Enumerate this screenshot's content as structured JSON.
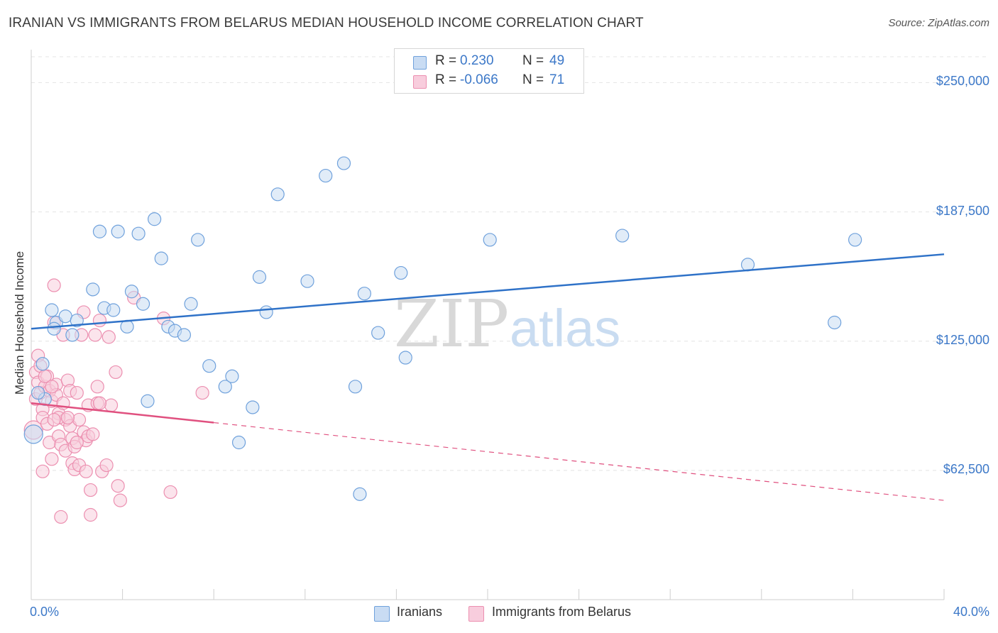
{
  "header": {
    "title": "IRANIAN VS IMMIGRANTS FROM BELARUS MEDIAN HOUSEHOLD INCOME CORRELATION CHART",
    "source": "Source: ZipAtlas.com"
  },
  "watermark": {
    "zip": "ZIP",
    "atlas": "atlas"
  },
  "colors": {
    "blue": "#6fa1dc",
    "blue_fill": "#c9dcf3",
    "blue_line": "#2f72c8",
    "pink": "#ec8fb0",
    "pink_fill": "#f8cddd",
    "pink_line": "#e0507f",
    "tick_label": "#3c78c8"
  },
  "legend": {
    "rows": [
      {
        "r_label": "R =",
        "r_value": "0.230",
        "n_label": "N =",
        "n_value": "49"
      },
      {
        "r_label": "R =",
        "r_value": "-0.066",
        "n_label": "N =",
        "n_value": "71"
      }
    ]
  },
  "bottom_legend": {
    "iranians": "Iranians",
    "belarus": "Immigrants from Belarus"
  },
  "chart_data": {
    "type": "scatter",
    "title": "IRANIAN VS IMMIGRANTS FROM BELARUS MEDIAN HOUSEHOLD INCOME CORRELATION CHART",
    "xlabel": "",
    "ylabel": "Median Household Income",
    "xlim": [
      0,
      40
    ],
    "ylim": [
      0,
      262500
    ],
    "x_tick_labels": [
      "0.0%",
      "40.0%"
    ],
    "y_ticks": [
      62500,
      125000,
      187500,
      250000
    ],
    "y_tick_labels": [
      "$62,500",
      "$125,000",
      "$187,500",
      "$250,000"
    ],
    "grid": true,
    "legend_position": "top-center",
    "series": [
      {
        "name": "Iranians",
        "color": "blue",
        "trend": {
          "x": [
            0,
            40
          ],
          "y": [
            131000,
            167000
          ],
          "dashed_from": null
        },
        "points": [
          [
            0.1,
            80000
          ],
          [
            0.5,
            114000
          ],
          [
            0.6,
            97000
          ],
          [
            0.9,
            140000
          ],
          [
            1.1,
            134000
          ],
          [
            1.5,
            137000
          ],
          [
            1.8,
            128000
          ],
          [
            2.0,
            135000
          ],
          [
            2.7,
            150000
          ],
          [
            3.0,
            178000
          ],
          [
            3.2,
            141000
          ],
          [
            3.6,
            140000
          ],
          [
            3.8,
            178000
          ],
          [
            4.2,
            132000
          ],
          [
            4.4,
            149000
          ],
          [
            4.7,
            177000
          ],
          [
            4.9,
            143000
          ],
          [
            5.1,
            96000
          ],
          [
            5.4,
            184000
          ],
          [
            5.7,
            165000
          ],
          [
            6.0,
            132000
          ],
          [
            6.3,
            130000
          ],
          [
            6.7,
            128000
          ],
          [
            7.0,
            143000
          ],
          [
            7.3,
            174000
          ],
          [
            7.8,
            113000
          ],
          [
            8.5,
            103000
          ],
          [
            8.8,
            108000
          ],
          [
            9.1,
            76000
          ],
          [
            9.7,
            93000
          ],
          [
            10.0,
            156000
          ],
          [
            10.3,
            139000
          ],
          [
            10.8,
            196000
          ],
          [
            12.1,
            154000
          ],
          [
            12.9,
            205000
          ],
          [
            13.7,
            211000
          ],
          [
            14.2,
            103000
          ],
          [
            14.4,
            51000
          ],
          [
            14.6,
            148000
          ],
          [
            15.2,
            129000
          ],
          [
            16.2,
            158000
          ],
          [
            16.4,
            117000
          ],
          [
            20.1,
            174000
          ],
          [
            25.9,
            176000
          ],
          [
            31.4,
            162000
          ],
          [
            35.2,
            134000
          ],
          [
            36.1,
            174000
          ],
          [
            0.3,
            100000
          ],
          [
            1.0,
            131000
          ]
        ]
      },
      {
        "name": "Immigrants from Belarus",
        "color": "pink",
        "trend": {
          "x": [
            0,
            40
          ],
          "y": [
            95000,
            48000
          ],
          "dashed_from": 8.0
        },
        "points": [
          [
            0.1,
            82000
          ],
          [
            0.2,
            97000
          ],
          [
            0.2,
            110000
          ],
          [
            0.3,
            118000
          ],
          [
            0.3,
            105000
          ],
          [
            0.4,
            100000
          ],
          [
            0.5,
            92000
          ],
          [
            0.5,
            88000
          ],
          [
            0.6,
            103000
          ],
          [
            0.7,
            108000
          ],
          [
            0.7,
            85000
          ],
          [
            0.8,
            76000
          ],
          [
            0.8,
            101000
          ],
          [
            0.9,
            96000
          ],
          [
            0.9,
            68000
          ],
          [
            1.0,
            152000
          ],
          [
            1.0,
            134000
          ],
          [
            1.1,
            104000
          ],
          [
            1.1,
            99000
          ],
          [
            1.2,
            90000
          ],
          [
            1.2,
            79000
          ],
          [
            1.3,
            75000
          ],
          [
            1.3,
            40000
          ],
          [
            1.4,
            128000
          ],
          [
            1.4,
            95000
          ],
          [
            1.5,
            87000
          ],
          [
            1.5,
            72000
          ],
          [
            1.6,
            106000
          ],
          [
            1.7,
            101000
          ],
          [
            1.7,
            84000
          ],
          [
            1.8,
            78000
          ],
          [
            1.8,
            66000
          ],
          [
            1.9,
            74000
          ],
          [
            1.9,
            63000
          ],
          [
            2.0,
            100000
          ],
          [
            2.1,
            87000
          ],
          [
            2.1,
            65000
          ],
          [
            2.2,
            128000
          ],
          [
            2.3,
            139000
          ],
          [
            2.3,
            81000
          ],
          [
            2.4,
            77000
          ],
          [
            2.5,
            94000
          ],
          [
            2.5,
            79000
          ],
          [
            2.6,
            53000
          ],
          [
            2.6,
            41000
          ],
          [
            2.7,
            80000
          ],
          [
            2.8,
            128000
          ],
          [
            2.9,
            95000
          ],
          [
            2.9,
            103000
          ],
          [
            3.0,
            135000
          ],
          [
            3.1,
            62000
          ],
          [
            3.3,
            65000
          ],
          [
            3.4,
            127000
          ],
          [
            3.5,
            94000
          ],
          [
            3.7,
            110000
          ],
          [
            3.8,
            55000
          ],
          [
            3.9,
            48000
          ],
          [
            4.5,
            146000
          ],
          [
            5.8,
            136000
          ],
          [
            6.1,
            52000
          ],
          [
            7.5,
            100000
          ],
          [
            0.4,
            113000
          ],
          [
            0.6,
            108000
          ],
          [
            0.9,
            103000
          ],
          [
            1.2,
            88000
          ],
          [
            1.6,
            88000
          ],
          [
            2.0,
            76000
          ],
          [
            2.4,
            62000
          ],
          [
            3.0,
            95000
          ],
          [
            1.0,
            87000
          ],
          [
            0.5,
            62000
          ]
        ]
      }
    ]
  }
}
